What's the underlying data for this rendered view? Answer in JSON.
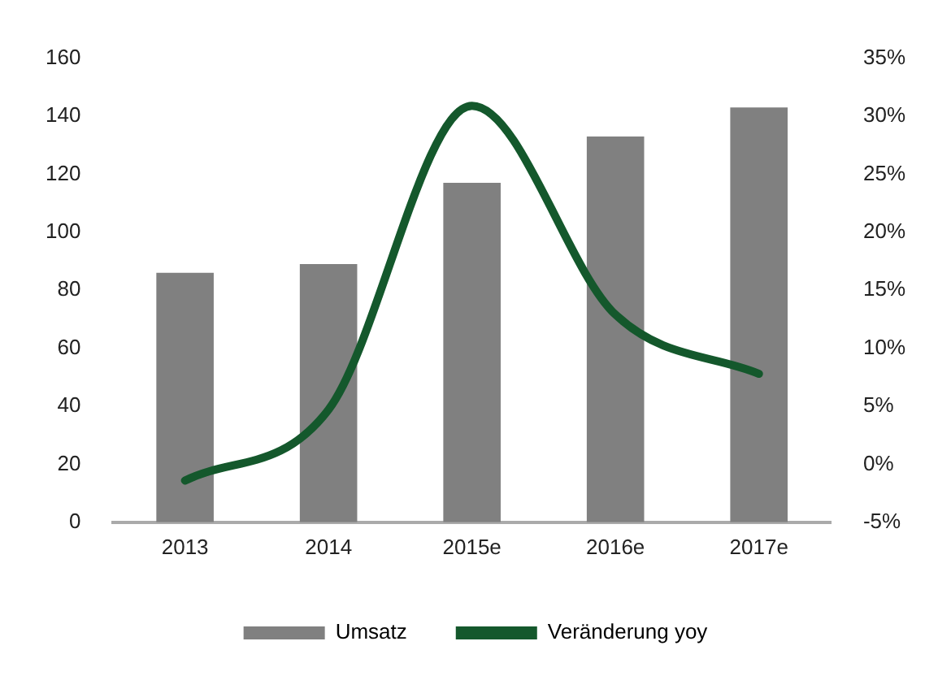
{
  "chart_data": {
    "type": "bar",
    "categories": [
      "2013",
      "2014",
      "2015e",
      "2016e",
      "2017e"
    ],
    "series": [
      {
        "name": "Umsatz",
        "color": "#808080",
        "values": [
          86,
          89,
          117,
          133,
          143
        ]
      },
      {
        "name": "Veränderung yoy",
        "type": "line",
        "axis": "y2",
        "color": "#14582c",
        "values": [
          -1.4,
          4.7,
          30.9,
          12.9,
          7.8
        ]
      }
    ],
    "ylim": [
      0,
      160
    ],
    "yticks": [
      0,
      20,
      40,
      60,
      80,
      100,
      120,
      140,
      160
    ],
    "y2lim": [
      -5,
      35
    ],
    "y2ticks": [
      {
        "value": -5,
        "label": "-5%"
      },
      {
        "value": 0,
        "label": "0%"
      },
      {
        "value": 5,
        "label": "5%"
      },
      {
        "value": 10,
        "label": "10%"
      },
      {
        "value": 15,
        "label": "15%"
      },
      {
        "value": 20,
        "label": "20%"
      },
      {
        "value": 25,
        "label": "25%"
      },
      {
        "value": 30,
        "label": "30%"
      },
      {
        "value": 35,
        "label": "35%"
      }
    ],
    "grid": false,
    "legend": "bottom",
    "marker": "none"
  }
}
